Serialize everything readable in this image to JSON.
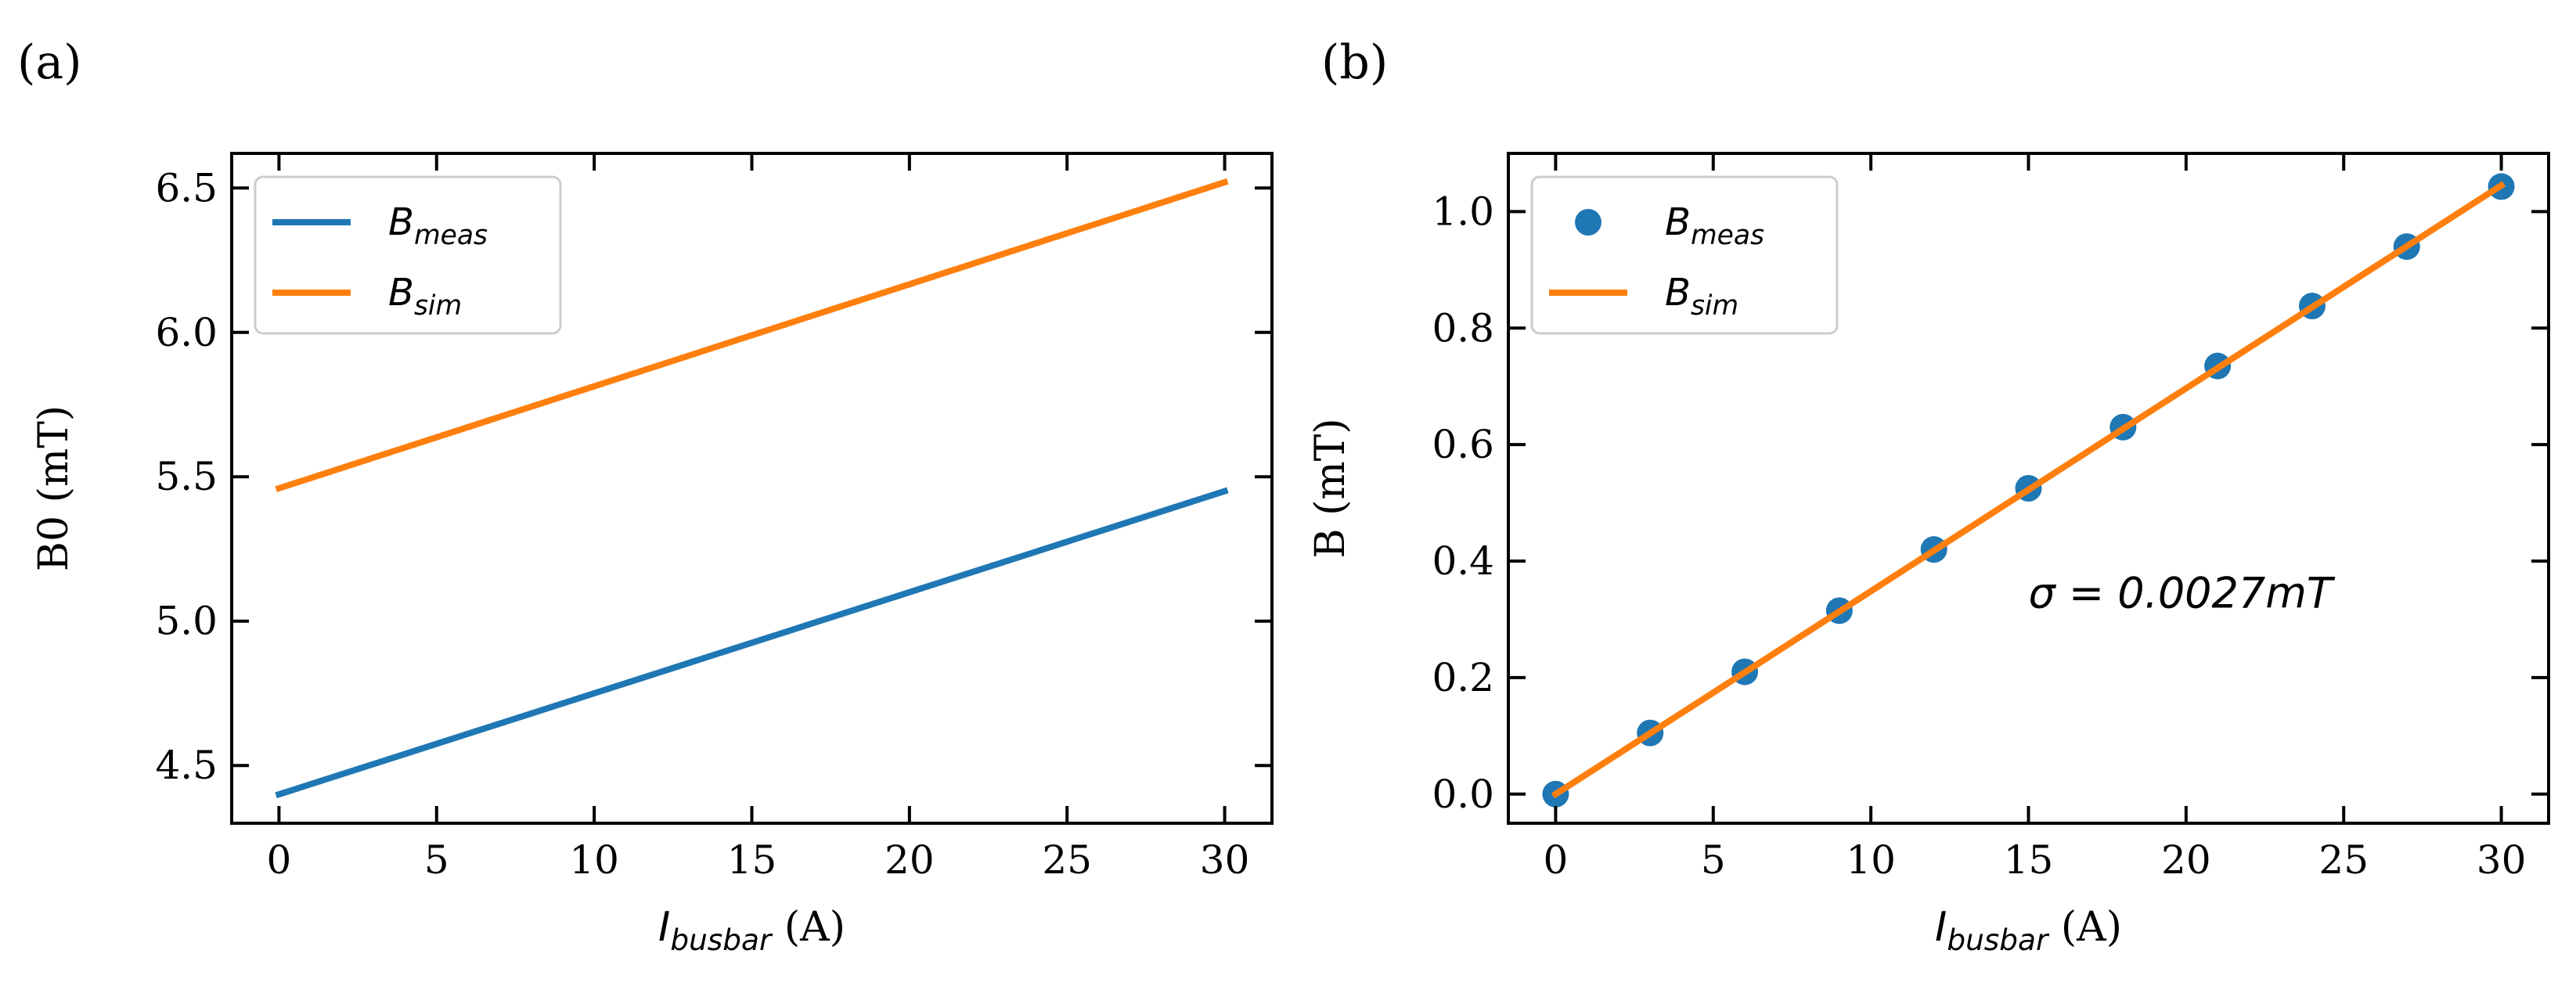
{
  "chart_data": [
    {
      "type": "line",
      "panel_label": "(a)",
      "xlabel_main": "I",
      "xlabel_sub": "busbar",
      "xlabel_unit": " (A)",
      "ylabel": "B0 (mT)",
      "xlim": [
        -1.5,
        31.5
      ],
      "ylim": [
        4.3,
        6.62
      ],
      "xticks": [
        0,
        5,
        10,
        15,
        20,
        25,
        30
      ],
      "xtick_labels": [
        "0",
        "5",
        "10",
        "15",
        "20",
        "25",
        "30"
      ],
      "yticks": [
        4.5,
        5.0,
        5.5,
        6.0,
        6.5
      ],
      "ytick_labels": [
        "4.5",
        "5.0",
        "5.5",
        "6.0",
        "6.5"
      ],
      "legend_position": "top-left",
      "series": [
        {
          "name_main": "B",
          "name_sub": "meas",
          "kind": "line",
          "color": "#1f77b4",
          "x": [
            0,
            30
          ],
          "y": [
            4.4,
            5.45
          ]
        },
        {
          "name_main": "B",
          "name_sub": "sim",
          "kind": "line",
          "color": "#ff7f0e",
          "x": [
            0,
            30
          ],
          "y": [
            5.46,
            6.52
          ]
        }
      ]
    },
    {
      "type": "scatter",
      "panel_label": "(b)",
      "xlabel_main": "I",
      "xlabel_sub": "busbar",
      "xlabel_unit": " (A)",
      "ylabel": "B (mT)",
      "xlim": [
        -1.5,
        31.5
      ],
      "ylim": [
        -0.05,
        1.1
      ],
      "xticks": [
        0,
        5,
        10,
        15,
        20,
        25,
        30
      ],
      "xtick_labels": [
        "0",
        "5",
        "10",
        "15",
        "20",
        "25",
        "30"
      ],
      "yticks": [
        0.0,
        0.2,
        0.4,
        0.6,
        0.8,
        1.0
      ],
      "ytick_labels": [
        "0.0",
        "0.2",
        "0.4",
        "0.6",
        "0.8",
        "1.0"
      ],
      "legend_position": "top-left",
      "annotation": "σ = 0.0027mT",
      "annotation_at": [
        15,
        0.32
      ],
      "series": [
        {
          "name_main": "B",
          "name_sub": "meas",
          "kind": "scatter",
          "color": "#1f77b4",
          "x": [
            0,
            3,
            6,
            9,
            12,
            15,
            18,
            21,
            24,
            27,
            30
          ],
          "y": [
            0.0,
            0.105,
            0.21,
            0.315,
            0.42,
            0.525,
            0.63,
            0.735,
            0.838,
            0.94,
            1.043
          ]
        },
        {
          "name_main": "B",
          "name_sub": "sim",
          "kind": "line",
          "color": "#ff7f0e",
          "x": [
            0,
            30
          ],
          "y": [
            0.0,
            1.045
          ]
        }
      ]
    }
  ]
}
